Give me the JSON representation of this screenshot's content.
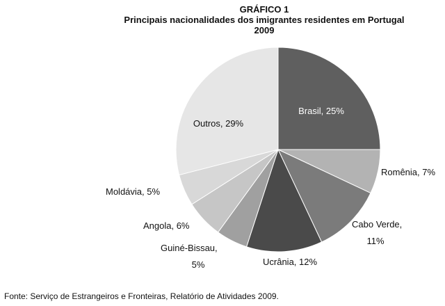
{
  "chart_data": {
    "type": "pie",
    "title": "GRÁFICO 1",
    "subtitle": "Principais nacionalidades dos imigrantes residentes em Portugal",
    "subtitle2": "2009",
    "categories": [
      "Brasil",
      "Romênia",
      "Cabo Verde",
      "Ucrânia",
      "Guiné-Bissau",
      "Angola",
      "Moldávia",
      "Outros"
    ],
    "values": [
      25,
      7,
      11,
      12,
      5,
      6,
      5,
      29
    ],
    "labels": [
      "Brasil, 25%",
      "Romênia, 7%",
      "Cabo Verde,",
      "Ucrânia, 12%",
      "Guiné-Bissau,",
      "Angola, 6%",
      "Moldávia, 5%",
      "Outros, 29%"
    ],
    "labels_line2": [
      "",
      "",
      "11%",
      "",
      "5%",
      "",
      "",
      ""
    ],
    "colors": [
      "#5f5f5f",
      "#b3b3b3",
      "#7b7b7b",
      "#4a4a4a",
      "#a0a0a0",
      "#c6c6c6",
      "#d8d8d8",
      "#e6e6e6"
    ],
    "legend": "none"
  },
  "source_note": "Fonte: Serviço de Estrangeiros e Fronteiras, Relatório de Atividades 2009."
}
